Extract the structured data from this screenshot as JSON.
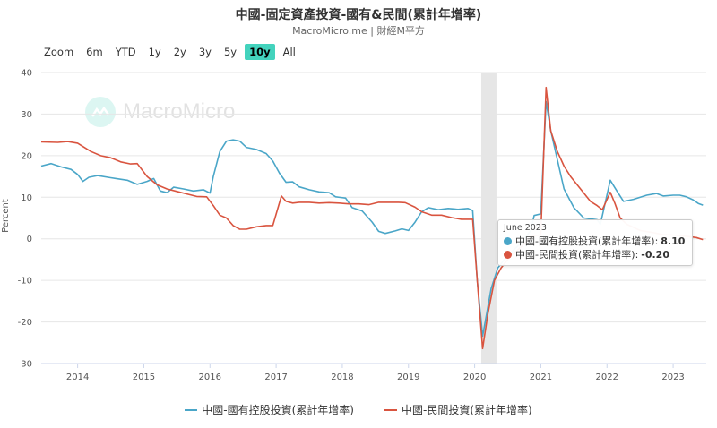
{
  "header": {
    "title": "中國-固定資產投資-國有&民間(累計年增率)",
    "subtitle": "MacroMicro.me | 財經M平方"
  },
  "range_selector": {
    "items": [
      {
        "label": "Zoom",
        "active": false
      },
      {
        "label": "6m",
        "active": false
      },
      {
        "label": "YTD",
        "active": false
      },
      {
        "label": "1y",
        "active": false
      },
      {
        "label": "2y",
        "active": false
      },
      {
        "label": "3y",
        "active": false
      },
      {
        "label": "5y",
        "active": false
      },
      {
        "label": "10y",
        "active": true
      },
      {
        "label": "All",
        "active": false
      }
    ]
  },
  "watermark": {
    "text": "MacroMicro"
  },
  "tooltip": {
    "date": "June 2023",
    "rows": [
      {
        "name": "中國-國有控股投資(累計年增率)",
        "value": "8.10",
        "color": "#4aa6c8"
      },
      {
        "name": "中國-民間投資(累計年增率)",
        "value": "-0.20",
        "color": "#d9543f"
      }
    ]
  },
  "chart_data": {
    "type": "line",
    "title": "中國-固定資產投資-國有&民間(累計年增率)",
    "ylabel": "Percent",
    "ylim": [
      -30,
      40
    ],
    "yticks": [
      40,
      30,
      20,
      10,
      0,
      -10,
      -20,
      -30
    ],
    "xlim": [
      2013.45,
      2023.5
    ],
    "xticks": [
      "2014",
      "2015",
      "2016",
      "2017",
      "2018",
      "2019",
      "2020",
      "2021",
      "2022",
      "2023"
    ],
    "grid": "horizontal",
    "legend_position": "bottom",
    "shaded_band": [
      2020.1,
      2020.33
    ],
    "series": [
      {
        "name": "中國-國有控股投資(累計年增率)",
        "color": "#4aa6c8",
        "points": [
          [
            2013.45,
            17.5
          ],
          [
            2013.6,
            18.1
          ],
          [
            2013.75,
            17.3
          ],
          [
            2013.9,
            16.7
          ],
          [
            2014.0,
            15.5
          ],
          [
            2014.08,
            13.8
          ],
          [
            2014.17,
            14.8
          ],
          [
            2014.3,
            15.2
          ],
          [
            2014.5,
            14.7
          ],
          [
            2014.75,
            14.1
          ],
          [
            2014.9,
            13.1
          ],
          [
            2015.05,
            13.8
          ],
          [
            2015.15,
            14.5
          ],
          [
            2015.25,
            11.5
          ],
          [
            2015.35,
            11.1
          ],
          [
            2015.45,
            12.4
          ],
          [
            2015.6,
            12.0
          ],
          [
            2015.75,
            11.5
          ],
          [
            2015.9,
            11.8
          ],
          [
            2016.0,
            11.0
          ],
          [
            2016.05,
            15.0
          ],
          [
            2016.15,
            21.0
          ],
          [
            2016.25,
            23.5
          ],
          [
            2016.35,
            23.8
          ],
          [
            2016.45,
            23.5
          ],
          [
            2016.55,
            22.0
          ],
          [
            2016.7,
            21.5
          ],
          [
            2016.85,
            20.5
          ],
          [
            2016.95,
            18.7
          ],
          [
            2017.05,
            15.8
          ],
          [
            2017.15,
            13.6
          ],
          [
            2017.25,
            13.7
          ],
          [
            2017.35,
            12.5
          ],
          [
            2017.5,
            11.8
          ],
          [
            2017.65,
            11.3
          ],
          [
            2017.8,
            11.1
          ],
          [
            2017.9,
            10.1
          ],
          [
            2018.05,
            9.8
          ],
          [
            2018.15,
            7.5
          ],
          [
            2018.3,
            6.7
          ],
          [
            2018.45,
            4.0
          ],
          [
            2018.55,
            1.8
          ],
          [
            2018.65,
            1.3
          ],
          [
            2018.8,
            1.9
          ],
          [
            2018.9,
            2.4
          ],
          [
            2019.0,
            2.0
          ],
          [
            2019.1,
            4.0
          ],
          [
            2019.2,
            6.5
          ],
          [
            2019.3,
            7.5
          ],
          [
            2019.45,
            7.0
          ],
          [
            2019.6,
            7.3
          ],
          [
            2019.75,
            7.1
          ],
          [
            2019.9,
            7.3
          ],
          [
            2019.97,
            6.8
          ],
          [
            2020.04,
            -10
          ],
          [
            2020.12,
            -23.4
          ],
          [
            2020.25,
            -12
          ],
          [
            2020.35,
            -7
          ],
          [
            2020.5,
            -4
          ],
          [
            2020.7,
            -1
          ],
          [
            2020.85,
            2
          ],
          [
            2020.9,
            5.6
          ],
          [
            2021.0,
            6.0
          ],
          [
            2021.08,
            33.0
          ],
          [
            2021.15,
            26.0
          ],
          [
            2021.25,
            19.0
          ],
          [
            2021.35,
            12.0
          ],
          [
            2021.5,
            7.5
          ],
          [
            2021.65,
            5.0
          ],
          [
            2021.85,
            4.6
          ],
          [
            2021.9,
            3.5
          ],
          [
            2022.05,
            14.1
          ],
          [
            2022.15,
            11.5
          ],
          [
            2022.25,
            9.0
          ],
          [
            2022.4,
            9.5
          ],
          [
            2022.6,
            10.5
          ],
          [
            2022.75,
            10.9
          ],
          [
            2022.85,
            10.3
          ],
          [
            2023.0,
            10.5
          ],
          [
            2023.1,
            10.5
          ],
          [
            2023.2,
            10.1
          ],
          [
            2023.3,
            9.4
          ],
          [
            2023.38,
            8.5
          ],
          [
            2023.45,
            8.1
          ]
        ]
      },
      {
        "name": "中國-民間投資(累計年增率)",
        "color": "#d9543f",
        "points": [
          [
            2013.45,
            23.3
          ],
          [
            2013.7,
            23.2
          ],
          [
            2013.85,
            23.4
          ],
          [
            2014.0,
            23.0
          ],
          [
            2014.2,
            21.0
          ],
          [
            2014.35,
            20.0
          ],
          [
            2014.5,
            19.5
          ],
          [
            2014.65,
            18.5
          ],
          [
            2014.8,
            18.0
          ],
          [
            2014.9,
            18.1
          ],
          [
            2015.05,
            15.0
          ],
          [
            2015.2,
            13.0
          ],
          [
            2015.35,
            12.0
          ],
          [
            2015.5,
            11.4
          ],
          [
            2015.65,
            10.8
          ],
          [
            2015.8,
            10.2
          ],
          [
            2015.95,
            10.1
          ],
          [
            2016.05,
            8.0
          ],
          [
            2016.15,
            5.7
          ],
          [
            2016.25,
            5.0
          ],
          [
            2016.35,
            3.2
          ],
          [
            2016.45,
            2.3
          ],
          [
            2016.55,
            2.3
          ],
          [
            2016.7,
            2.9
          ],
          [
            2016.85,
            3.2
          ],
          [
            2016.95,
            3.2
          ],
          [
            2017.08,
            10.3
          ],
          [
            2017.15,
            9.0
          ],
          [
            2017.25,
            8.6
          ],
          [
            2017.35,
            8.8
          ],
          [
            2017.5,
            8.8
          ],
          [
            2017.65,
            8.6
          ],
          [
            2017.8,
            8.7
          ],
          [
            2017.95,
            8.6
          ],
          [
            2018.1,
            8.4
          ],
          [
            2018.25,
            8.4
          ],
          [
            2018.4,
            8.2
          ],
          [
            2018.55,
            8.8
          ],
          [
            2018.7,
            8.8
          ],
          [
            2018.85,
            8.8
          ],
          [
            2018.95,
            8.7
          ],
          [
            2019.1,
            7.6
          ],
          [
            2019.2,
            6.5
          ],
          [
            2019.35,
            5.7
          ],
          [
            2019.5,
            5.7
          ],
          [
            2019.65,
            5.1
          ],
          [
            2019.8,
            4.7
          ],
          [
            2019.9,
            4.7
          ],
          [
            2019.97,
            4.7
          ],
          [
            2020.04,
            -10
          ],
          [
            2020.12,
            -26.4
          ],
          [
            2020.2,
            -18.0
          ],
          [
            2020.3,
            -10.0
          ],
          [
            2020.4,
            -7.0
          ],
          [
            2020.55,
            -4.0
          ],
          [
            2020.7,
            -2.0
          ],
          [
            2020.85,
            0.5
          ],
          [
            2021.0,
            1.0
          ],
          [
            2021.08,
            36.4
          ],
          [
            2021.15,
            26.0
          ],
          [
            2021.25,
            21.0
          ],
          [
            2021.35,
            17.5
          ],
          [
            2021.45,
            15.0
          ],
          [
            2021.55,
            13.0
          ],
          [
            2021.65,
            11.0
          ],
          [
            2021.75,
            9.0
          ],
          [
            2021.85,
            8.0
          ],
          [
            2021.93,
            7.0
          ],
          [
            2022.05,
            11.2
          ],
          [
            2022.12,
            8.5
          ],
          [
            2022.2,
            5.0
          ],
          [
            2022.3,
            3.5
          ],
          [
            2022.5,
            2.0
          ],
          [
            2022.7,
            1.5
          ],
          [
            2022.85,
            1.0
          ],
          [
            2023.0,
            0.9
          ],
          [
            2023.2,
            0.6
          ],
          [
            2023.35,
            0.3
          ],
          [
            2023.45,
            -0.2
          ]
        ]
      }
    ]
  }
}
